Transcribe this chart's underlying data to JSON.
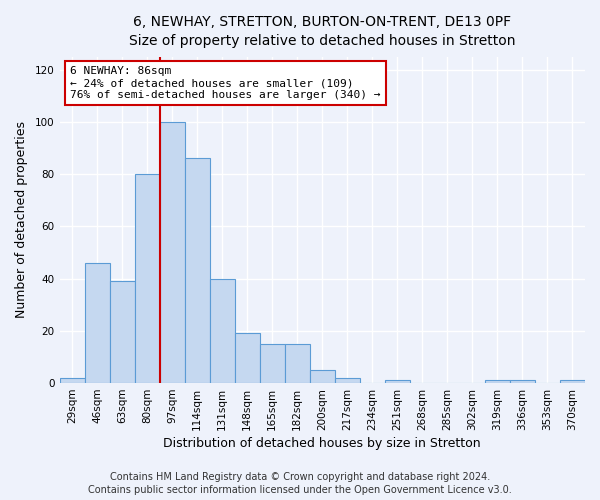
{
  "title": "6, NEWHAY, STRETTON, BURTON-ON-TRENT, DE13 0PF",
  "subtitle": "Size of property relative to detached houses in Stretton",
  "xlabel": "Distribution of detached houses by size in Stretton",
  "ylabel": "Number of detached properties",
  "categories": [
    "29sqm",
    "46sqm",
    "63sqm",
    "80sqm",
    "97sqm",
    "114sqm",
    "131sqm",
    "148sqm",
    "165sqm",
    "182sqm",
    "200sqm",
    "217sqm",
    "234sqm",
    "251sqm",
    "268sqm",
    "285sqm",
    "302sqm",
    "319sqm",
    "336sqm",
    "353sqm",
    "370sqm"
  ],
  "values": [
    2,
    46,
    39,
    80,
    100,
    86,
    40,
    19,
    15,
    15,
    5,
    2,
    0,
    1,
    0,
    0,
    0,
    1,
    1,
    0,
    1
  ],
  "bar_color": "#c5d8f0",
  "bar_edge_color": "#5b9bd5",
  "ylim": [
    0,
    125
  ],
  "yticks": [
    0,
    20,
    40,
    60,
    80,
    100,
    120
  ],
  "vline_color": "#cc0000",
  "annotation_title": "6 NEWHAY: 86sqm",
  "annotation_line1": "← 24% of detached houses are smaller (109)",
  "annotation_line2": "76% of semi-detached houses are larger (340) →",
  "annotation_box_facecolor": "#ffffff",
  "annotation_box_edgecolor": "#cc0000",
  "footer1": "Contains HM Land Registry data © Crown copyright and database right 2024.",
  "footer2": "Contains public sector information licensed under the Open Government Licence v3.0.",
  "bg_color": "#eef2fb",
  "plot_bg_color": "#eef2fb",
  "grid_color": "#ffffff",
  "title_fontsize": 10,
  "subtitle_fontsize": 9,
  "axis_label_fontsize": 9,
  "tick_fontsize": 7.5,
  "annotation_fontsize": 8,
  "footer_fontsize": 7
}
